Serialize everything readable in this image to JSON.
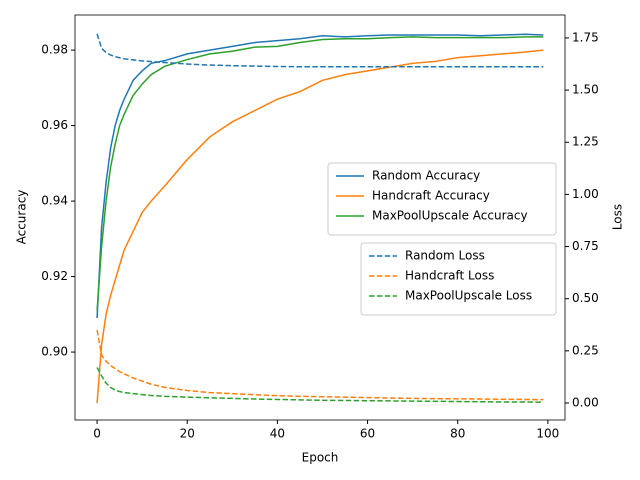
{
  "chart_data": {
    "type": "line",
    "xlabel": "Epoch",
    "ylabel": "Accuracy",
    "y2label": "Loss",
    "x": [
      0,
      1,
      2,
      3,
      4,
      5,
      6,
      8,
      10,
      12,
      15,
      20,
      25,
      30,
      35,
      40,
      45,
      50,
      55,
      60,
      65,
      70,
      75,
      80,
      85,
      90,
      95,
      99
    ],
    "xlim": [
      -4.9,
      103.8
    ],
    "xticks": [
      0,
      20,
      40,
      60,
      80,
      100
    ],
    "ylim": [
      0.882,
      0.9893
    ],
    "yticks": [
      {
        "value": 0.9,
        "label": "0.90"
      },
      0.92,
      0.94,
      0.96,
      0.98
    ],
    "y2lim": [
      -0.0815,
      1.86
    ],
    "y2ticks": [
      {
        "value": 0,
        "label": "0.00"
      },
      0.25,
      {
        "value": 0.5,
        "label": "0.50"
      },
      0.75,
      {
        "value": 1,
        "label": "1.00"
      },
      1.25,
      {
        "value": 1.5,
        "label": "1.50"
      },
      1.75
    ],
    "series": [
      {
        "name": "Random Accuracy",
        "color": "#1f77b4",
        "linestyle": "solid",
        "axis": "y",
        "values": [
          0.909,
          0.933,
          0.945,
          0.954,
          0.96,
          0.964,
          0.967,
          0.972,
          0.9745,
          0.9765,
          0.9772,
          0.979,
          0.98,
          0.981,
          0.982,
          0.9825,
          0.983,
          0.9838,
          0.9835,
          0.9838,
          0.984,
          0.984,
          0.984,
          0.984,
          0.9838,
          0.984,
          0.9842,
          0.984
        ]
      },
      {
        "name": "Handcraft Accuracy",
        "color": "#ff7f0e",
        "linestyle": "solid",
        "axis": "y",
        "values": [
          0.8865,
          0.902,
          0.91,
          0.915,
          0.919,
          0.923,
          0.927,
          0.932,
          0.937,
          0.94,
          0.944,
          0.951,
          0.957,
          0.961,
          0.964,
          0.967,
          0.969,
          0.972,
          0.9735,
          0.9745,
          0.9755,
          0.9765,
          0.977,
          0.978,
          0.9785,
          0.979,
          0.9795,
          0.98
        ]
      },
      {
        "name": "MaxPoolUpscale Accuracy",
        "color": "#2ca02c",
        "linestyle": "solid",
        "axis": "y",
        "values": [
          0.911,
          0.928,
          0.94,
          0.949,
          0.955,
          0.96,
          0.963,
          0.968,
          0.971,
          0.9735,
          0.9757,
          0.9775,
          0.979,
          0.9797,
          0.9808,
          0.981,
          0.982,
          0.9828,
          0.983,
          0.983,
          0.9833,
          0.9835,
          0.9833,
          0.9833,
          0.9833,
          0.9833,
          0.9835,
          0.9835
        ]
      },
      {
        "name": "Random Loss",
        "color": "#1f77b4",
        "linestyle": "dashed",
        "axis": "y2",
        "values": [
          1.77,
          1.7,
          1.68,
          1.668,
          1.66,
          1.655,
          1.65,
          1.645,
          1.64,
          1.637,
          1.632,
          1.625,
          1.62,
          1.617,
          1.615,
          1.613,
          1.612,
          1.612,
          1.612,
          1.612,
          1.612,
          1.612,
          1.612,
          1.612,
          1.612,
          1.612,
          1.612,
          1.612
        ]
      },
      {
        "name": "Handcraft Loss",
        "color": "#ff7f0e",
        "linestyle": "dashed",
        "axis": "y2",
        "values": [
          0.35,
          0.23,
          0.2,
          0.18,
          0.165,
          0.15,
          0.14,
          0.12,
          0.105,
          0.09,
          0.075,
          0.06,
          0.05,
          0.045,
          0.04,
          0.035,
          0.032,
          0.03,
          0.028,
          0.026,
          0.024,
          0.022,
          0.021,
          0.02,
          0.019,
          0.018,
          0.017,
          0.016
        ]
      },
      {
        "name": "MaxPoolUpscale Loss",
        "color": "#2ca02c",
        "linestyle": "dashed",
        "axis": "y2",
        "values": [
          0.17,
          0.13,
          0.095,
          0.075,
          0.062,
          0.055,
          0.05,
          0.045,
          0.04,
          0.036,
          0.032,
          0.028,
          0.025,
          0.022,
          0.019,
          0.017,
          0.015,
          0.013,
          0.012,
          0.011,
          0.01,
          0.009,
          0.008,
          0.007,
          0.006,
          0.005,
          0.005,
          0.004
        ]
      }
    ]
  }
}
